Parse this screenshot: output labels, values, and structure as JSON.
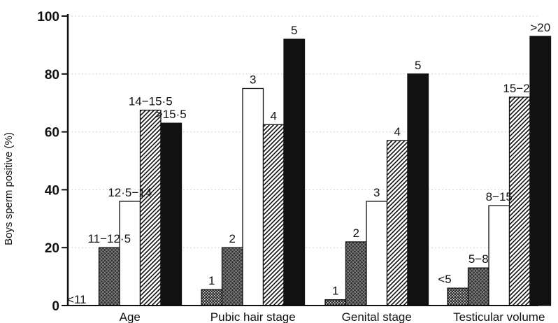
{
  "chart_data": {
    "type": "bar",
    "ylabel": "Boys sperm positive (%)",
    "ylim": [
      0,
      100
    ],
    "yticks": [
      0,
      20,
      40,
      60,
      80,
      100
    ],
    "grid": "faint horizontal dotted lines",
    "groups": [
      {
        "label": "Age",
        "bars": [
          {
            "label": "<11",
            "value": 0,
            "pattern": "dots"
          },
          {
            "label": "11−12·5",
            "value": 20,
            "pattern": "cross"
          },
          {
            "label": "12·5−14",
            "value": 36,
            "pattern": "white"
          },
          {
            "label": "14−15·5",
            "value": 67.5,
            "pattern": "diag"
          },
          {
            "label": ">15·5",
            "value": 63,
            "pattern": "black"
          }
        ]
      },
      {
        "label": "Pubic hair stage",
        "bars": [
          {
            "label": "1",
            "value": 5.5,
            "pattern": "dots"
          },
          {
            "label": "2",
            "value": 20,
            "pattern": "cross"
          },
          {
            "label": "3",
            "value": 75,
            "pattern": "white"
          },
          {
            "label": "4",
            "value": 62.5,
            "pattern": "diag"
          },
          {
            "label": "5",
            "value": 92,
            "pattern": "black"
          }
        ]
      },
      {
        "label": "Genital stage",
        "bars": [
          {
            "label": "1",
            "value": 2,
            "pattern": "dots"
          },
          {
            "label": "2",
            "value": 22,
            "pattern": "cross"
          },
          {
            "label": "3",
            "value": 36,
            "pattern": "white"
          },
          {
            "label": "4",
            "value": 57,
            "pattern": "diag"
          },
          {
            "label": "5",
            "value": 80,
            "pattern": "black"
          }
        ]
      },
      {
        "label": "Testicular volume",
        "bars": [
          {
            "label": "<5",
            "value": 6,
            "pattern": "dots"
          },
          {
            "label": "5−8",
            "value": 13,
            "pattern": "cross"
          },
          {
            "label": "8−15",
            "value": 34.5,
            "pattern": "white"
          },
          {
            "label": "15−20",
            "value": 72,
            "pattern": "diag"
          },
          {
            "label": ">20",
            "value": 93,
            "pattern": "black"
          }
        ]
      }
    ],
    "colors": {
      "ink": "#111111",
      "grid": "#d4d4d4",
      "background": "#ffffff"
    }
  }
}
